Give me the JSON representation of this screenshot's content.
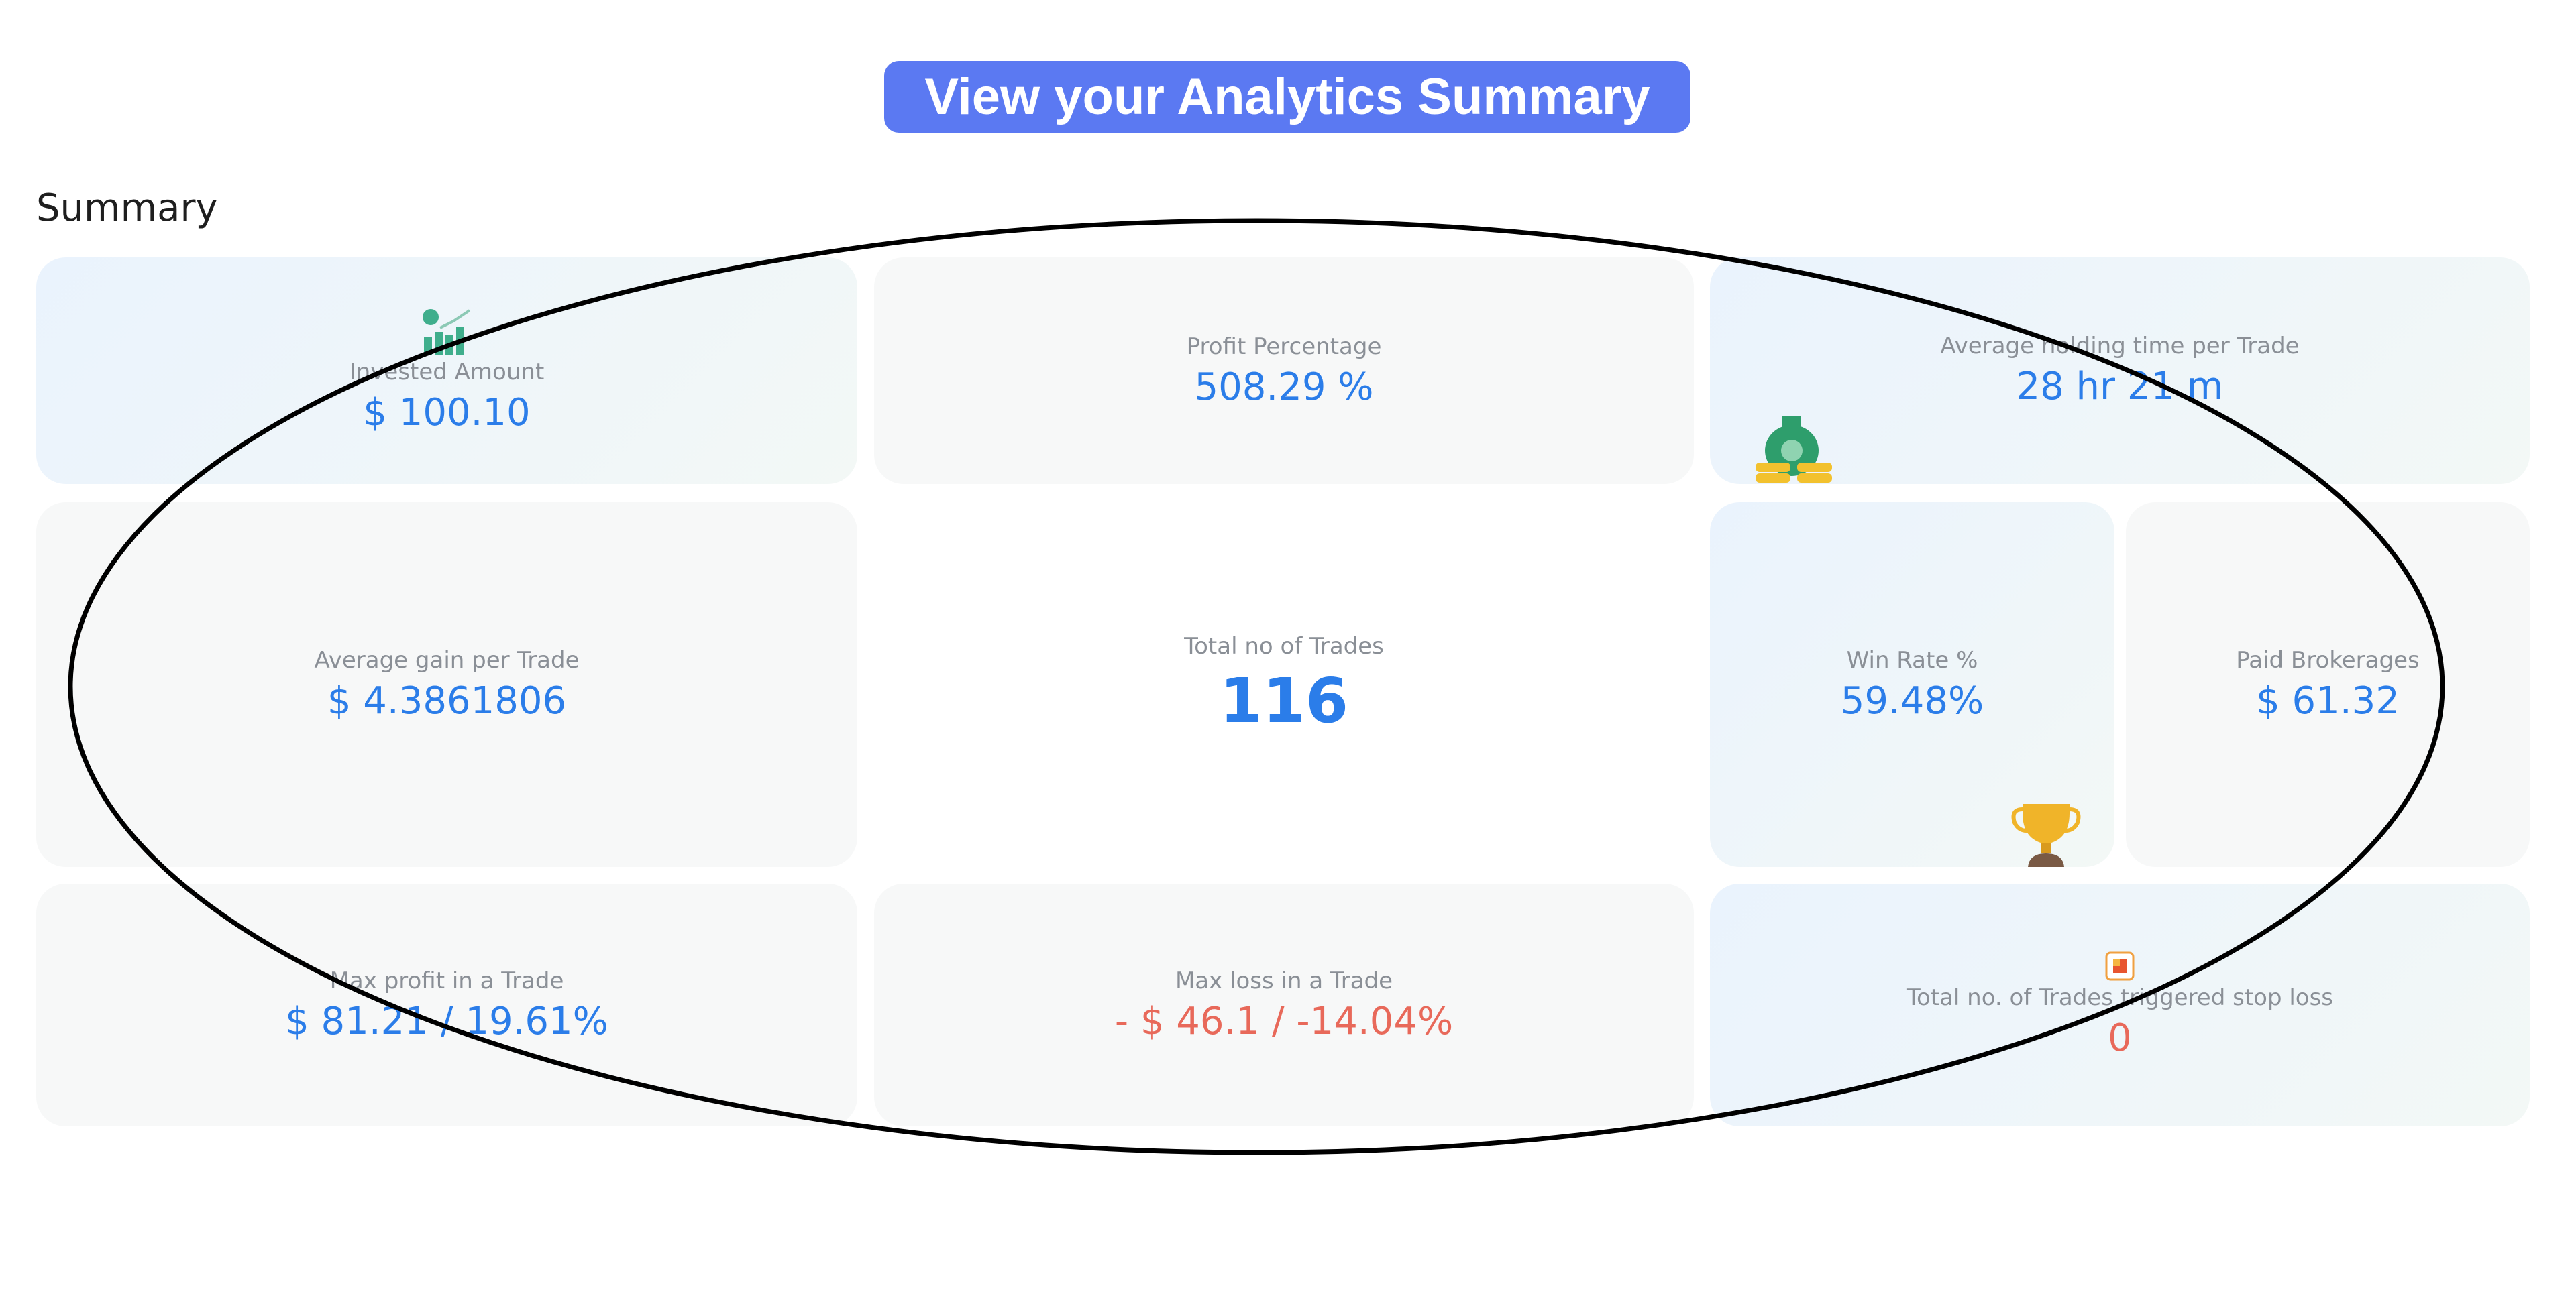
{
  "header": {
    "banner": "View your Analytics Summary",
    "section_title": "Summary"
  },
  "cards": [
    {
      "label": "Invested Amount",
      "value": "$ 100.10"
    },
    {
      "label": "Profit Percentage",
      "value": "508.29 %"
    },
    {
      "label": "Average holding time per Trade",
      "value": "28 hr 21 m"
    },
    {
      "label": "Average gain per Trade",
      "value": "$ 4.3861806"
    },
    {
      "label": "Total no of Trades",
      "value": "116"
    },
    {
      "label": "Win Rate %",
      "value": "59.48%"
    },
    {
      "label": "Paid Brokerages",
      "value": "$ 61.32"
    },
    {
      "label": "Max profit in a Trade",
      "value": "$ 81.21 / 19.61%"
    },
    {
      "label": "Max loss in a Trade",
      "value": "- $ 46.1 / -14.04%"
    },
    {
      "label": "Total no. of Trades triggered stop loss",
      "value": "0"
    }
  ]
}
